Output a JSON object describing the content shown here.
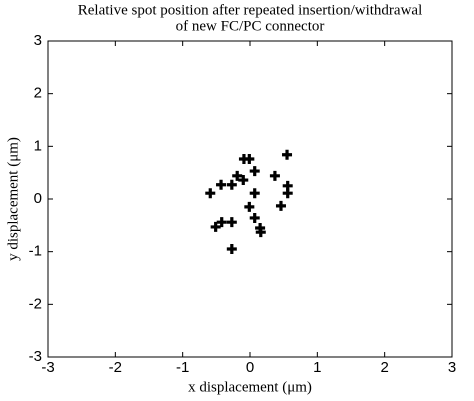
{
  "chart_data": {
    "type": "scatter",
    "title": [
      "Relative spot position after repeated insertion/withdrawal",
      "of new FC/PC connector"
    ],
    "xlabel": "x displacement (μm)",
    "ylabel": "y displacement (μm)",
    "x": [
      -0.59,
      -0.43,
      -0.27,
      -0.19,
      -0.1,
      -0.09,
      -0.01,
      0.07,
      0.07,
      -0.01,
      0.37,
      0.55,
      0.56,
      0.56,
      0.46,
      -0.51,
      -0.42,
      -0.27,
      0.07,
      0.15,
      0.16,
      -0.27
    ],
    "y": [
      0.11,
      0.27,
      0.27,
      0.44,
      0.36,
      0.76,
      0.76,
      0.53,
      0.11,
      -0.15,
      0.44,
      0.84,
      0.25,
      0.11,
      -0.13,
      -0.53,
      -0.44,
      -0.44,
      -0.36,
      -0.55,
      -0.63,
      -0.95
    ],
    "color": "#000000",
    "xlim": [
      -3,
      3
    ],
    "ylim": [
      -3,
      3
    ],
    "xticks": [
      -3,
      -2,
      -1,
      0,
      1,
      2,
      3
    ],
    "yticks": [
      -3,
      -2,
      -1,
      0,
      1,
      2,
      3
    ]
  }
}
